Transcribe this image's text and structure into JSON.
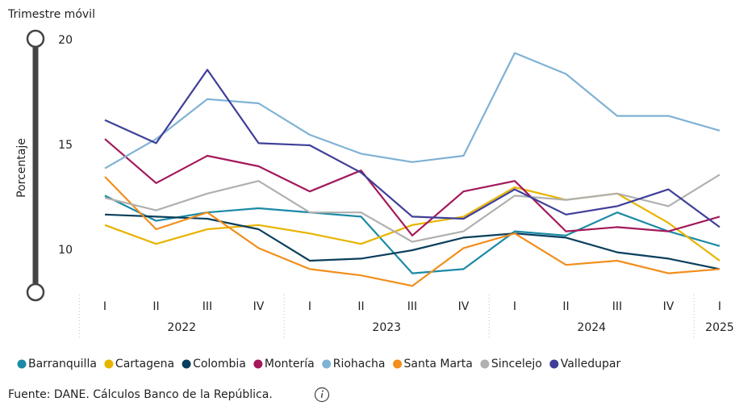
{
  "chart_data": {
    "type": "line",
    "title": "Trimestre móvil",
    "y_label": "Porcentaje",
    "source": "Fuente: DANE. Cálculos Banco de la República.",
    "categories": [
      "I",
      "II",
      "III",
      "IV",
      "I",
      "II",
      "III",
      "IV",
      "I",
      "II",
      "III",
      "IV",
      "I"
    ],
    "x_groups": [
      {
        "label": "2022",
        "span": 4
      },
      {
        "label": "2023",
        "span": 4
      },
      {
        "label": "2024",
        "span": 4
      },
      {
        "label": "2025",
        "span": 1
      }
    ],
    "ylim": [
      8,
      20
    ],
    "yticks": [
      10,
      15,
      20
    ],
    "legend": "bottom",
    "series": [
      {
        "name": "Barranquilla",
        "color": "#1b8aa6",
        "values": [
          12.6,
          11.4,
          11.8,
          12.0,
          11.8,
          11.6,
          8.9,
          9.1,
          10.9,
          10.7,
          11.8,
          10.9,
          10.2
        ]
      },
      {
        "name": "Cartagena",
        "color": "#e8b400",
        "values": [
          11.2,
          10.3,
          11.0,
          11.2,
          10.8,
          10.3,
          11.2,
          11.6,
          13.0,
          12.4,
          12.7,
          11.3,
          9.5
        ]
      },
      {
        "name": "Colombia",
        "color": "#0b3f5c",
        "values": [
          11.7,
          11.6,
          11.5,
          11.0,
          9.5,
          9.6,
          10.0,
          10.6,
          10.8,
          10.6,
          9.9,
          9.6,
          9.1
        ]
      },
      {
        "name": "Montería",
        "color": "#a3195b",
        "values": [
          15.3,
          13.2,
          14.5,
          14.0,
          12.8,
          13.8,
          10.7,
          12.8,
          13.3,
          10.9,
          11.1,
          10.9,
          11.6
        ]
      },
      {
        "name": "Riohacha",
        "color": "#7fb2d4",
        "values": [
          13.9,
          15.3,
          17.2,
          17.0,
          15.5,
          14.6,
          14.2,
          14.5,
          19.4,
          18.4,
          16.4,
          16.4,
          15.7
        ]
      },
      {
        "name": "Santa Marta",
        "color": "#f28e1c",
        "values": [
          13.5,
          11.0,
          11.8,
          10.1,
          9.1,
          8.8,
          8.3,
          10.1,
          10.8,
          9.3,
          9.5,
          8.9,
          9.1
        ]
      },
      {
        "name": "Sincelejo",
        "color": "#b0b0b0",
        "values": [
          12.5,
          11.9,
          12.7,
          13.3,
          11.8,
          11.8,
          10.4,
          10.9,
          12.6,
          12.4,
          12.7,
          12.1,
          13.6
        ]
      },
      {
        "name": "Valledupar",
        "color": "#3f3f99",
        "values": [
          16.2,
          15.1,
          18.6,
          15.1,
          15.0,
          13.7,
          11.6,
          11.5,
          12.9,
          11.7,
          12.1,
          12.9,
          11.1
        ]
      }
    ]
  }
}
